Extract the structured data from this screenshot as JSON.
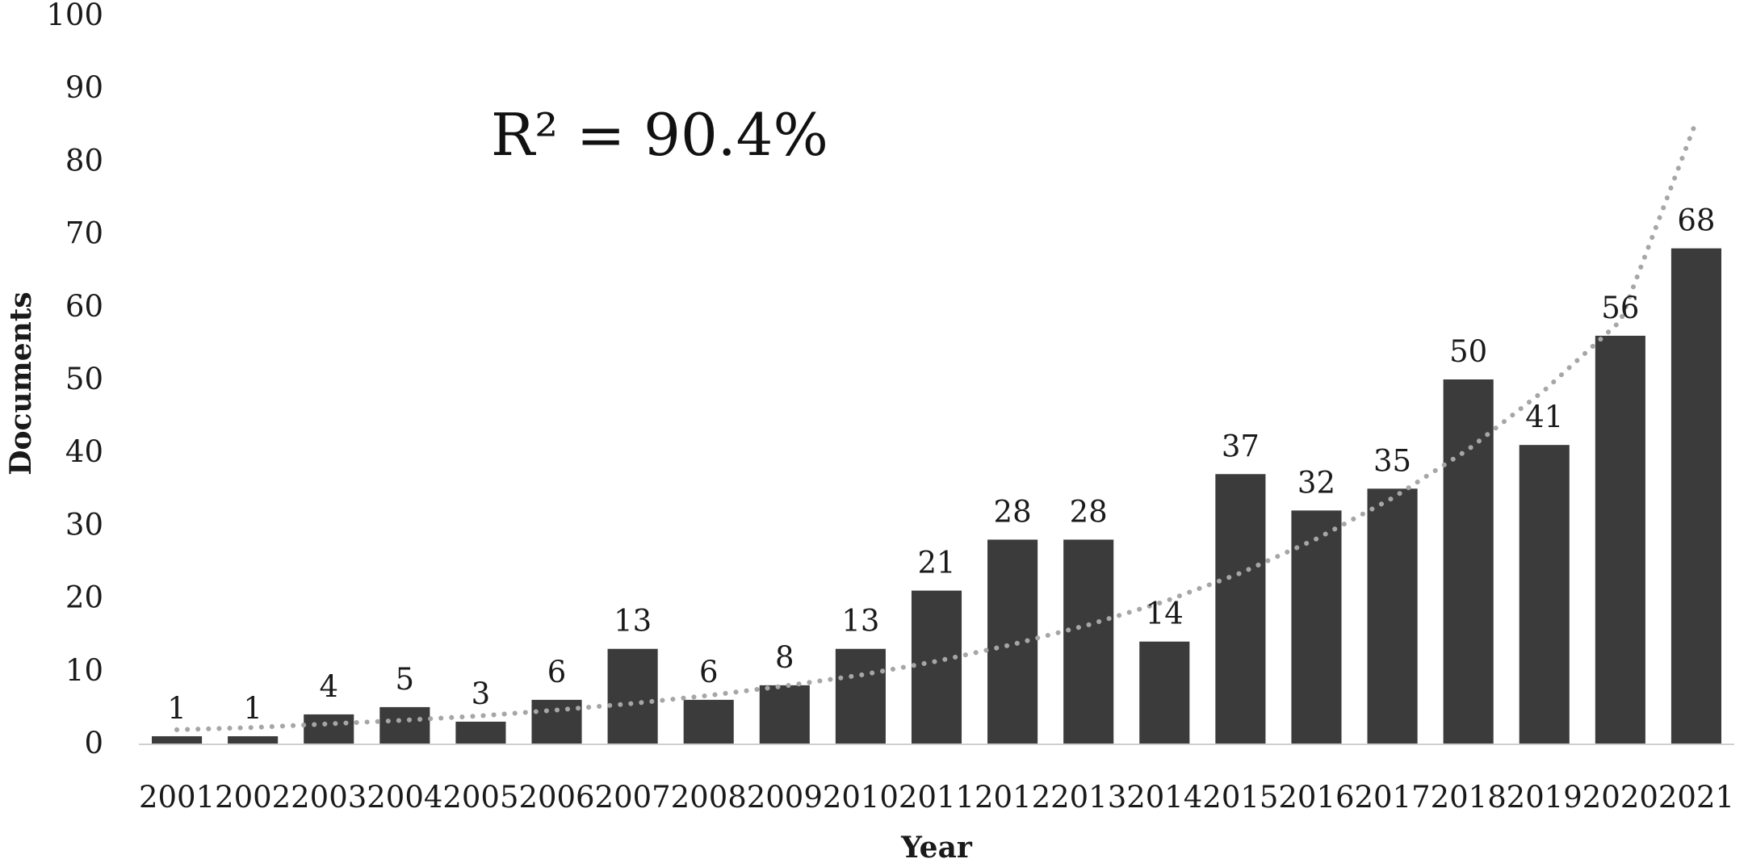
{
  "chart_data": {
    "type": "bar",
    "categories": [
      "2001",
      "2002",
      "2003",
      "2004",
      "2005",
      "2006",
      "2007",
      "2008",
      "2009",
      "2010",
      "2011",
      "2012",
      "2013",
      "2014",
      "2015",
      "2016",
      "2017",
      "2018",
      "2019",
      "2020",
      "2021"
    ],
    "values": [
      1,
      1,
      4,
      5,
      3,
      6,
      13,
      6,
      8,
      13,
      21,
      28,
      28,
      14,
      37,
      32,
      35,
      50,
      41,
      56,
      68
    ],
    "data_labels": [
      "1",
      "1",
      "4",
      "5",
      "3",
      "6",
      "13",
      "6",
      "8",
      "13",
      "21",
      "28",
      "28",
      "14",
      "37",
      "32",
      "35",
      "50",
      "41",
      "56",
      "68"
    ],
    "title": "",
    "xlabel": "Year",
    "ylabel": "Documents",
    "ylim": [
      0,
      100
    ],
    "y_ticks": [
      0,
      10,
      20,
      30,
      40,
      50,
      60,
      70,
      80,
      90,
      100
    ],
    "y_tick_labels": [
      "0",
      "10",
      "20",
      "30",
      "40",
      "50",
      "60",
      "70",
      "80",
      "90",
      "100"
    ],
    "grid": false,
    "legend": "none",
    "bar_color": "#3b3b3b",
    "trendline": {
      "type": "exponential",
      "style": "dotted",
      "color": "#a6a6a6",
      "values": [
        1.9,
        2.2,
        2.7,
        3.2,
        3.8,
        4.6,
        5.5,
        6.6,
        7.9,
        9.4,
        11.3,
        13.6,
        16.3,
        19.5,
        23.4,
        28.1,
        33.7,
        40.4,
        48.5,
        58.0,
        85.5
      ],
      "r_squared_label": "R² = 90.4%"
    }
  }
}
